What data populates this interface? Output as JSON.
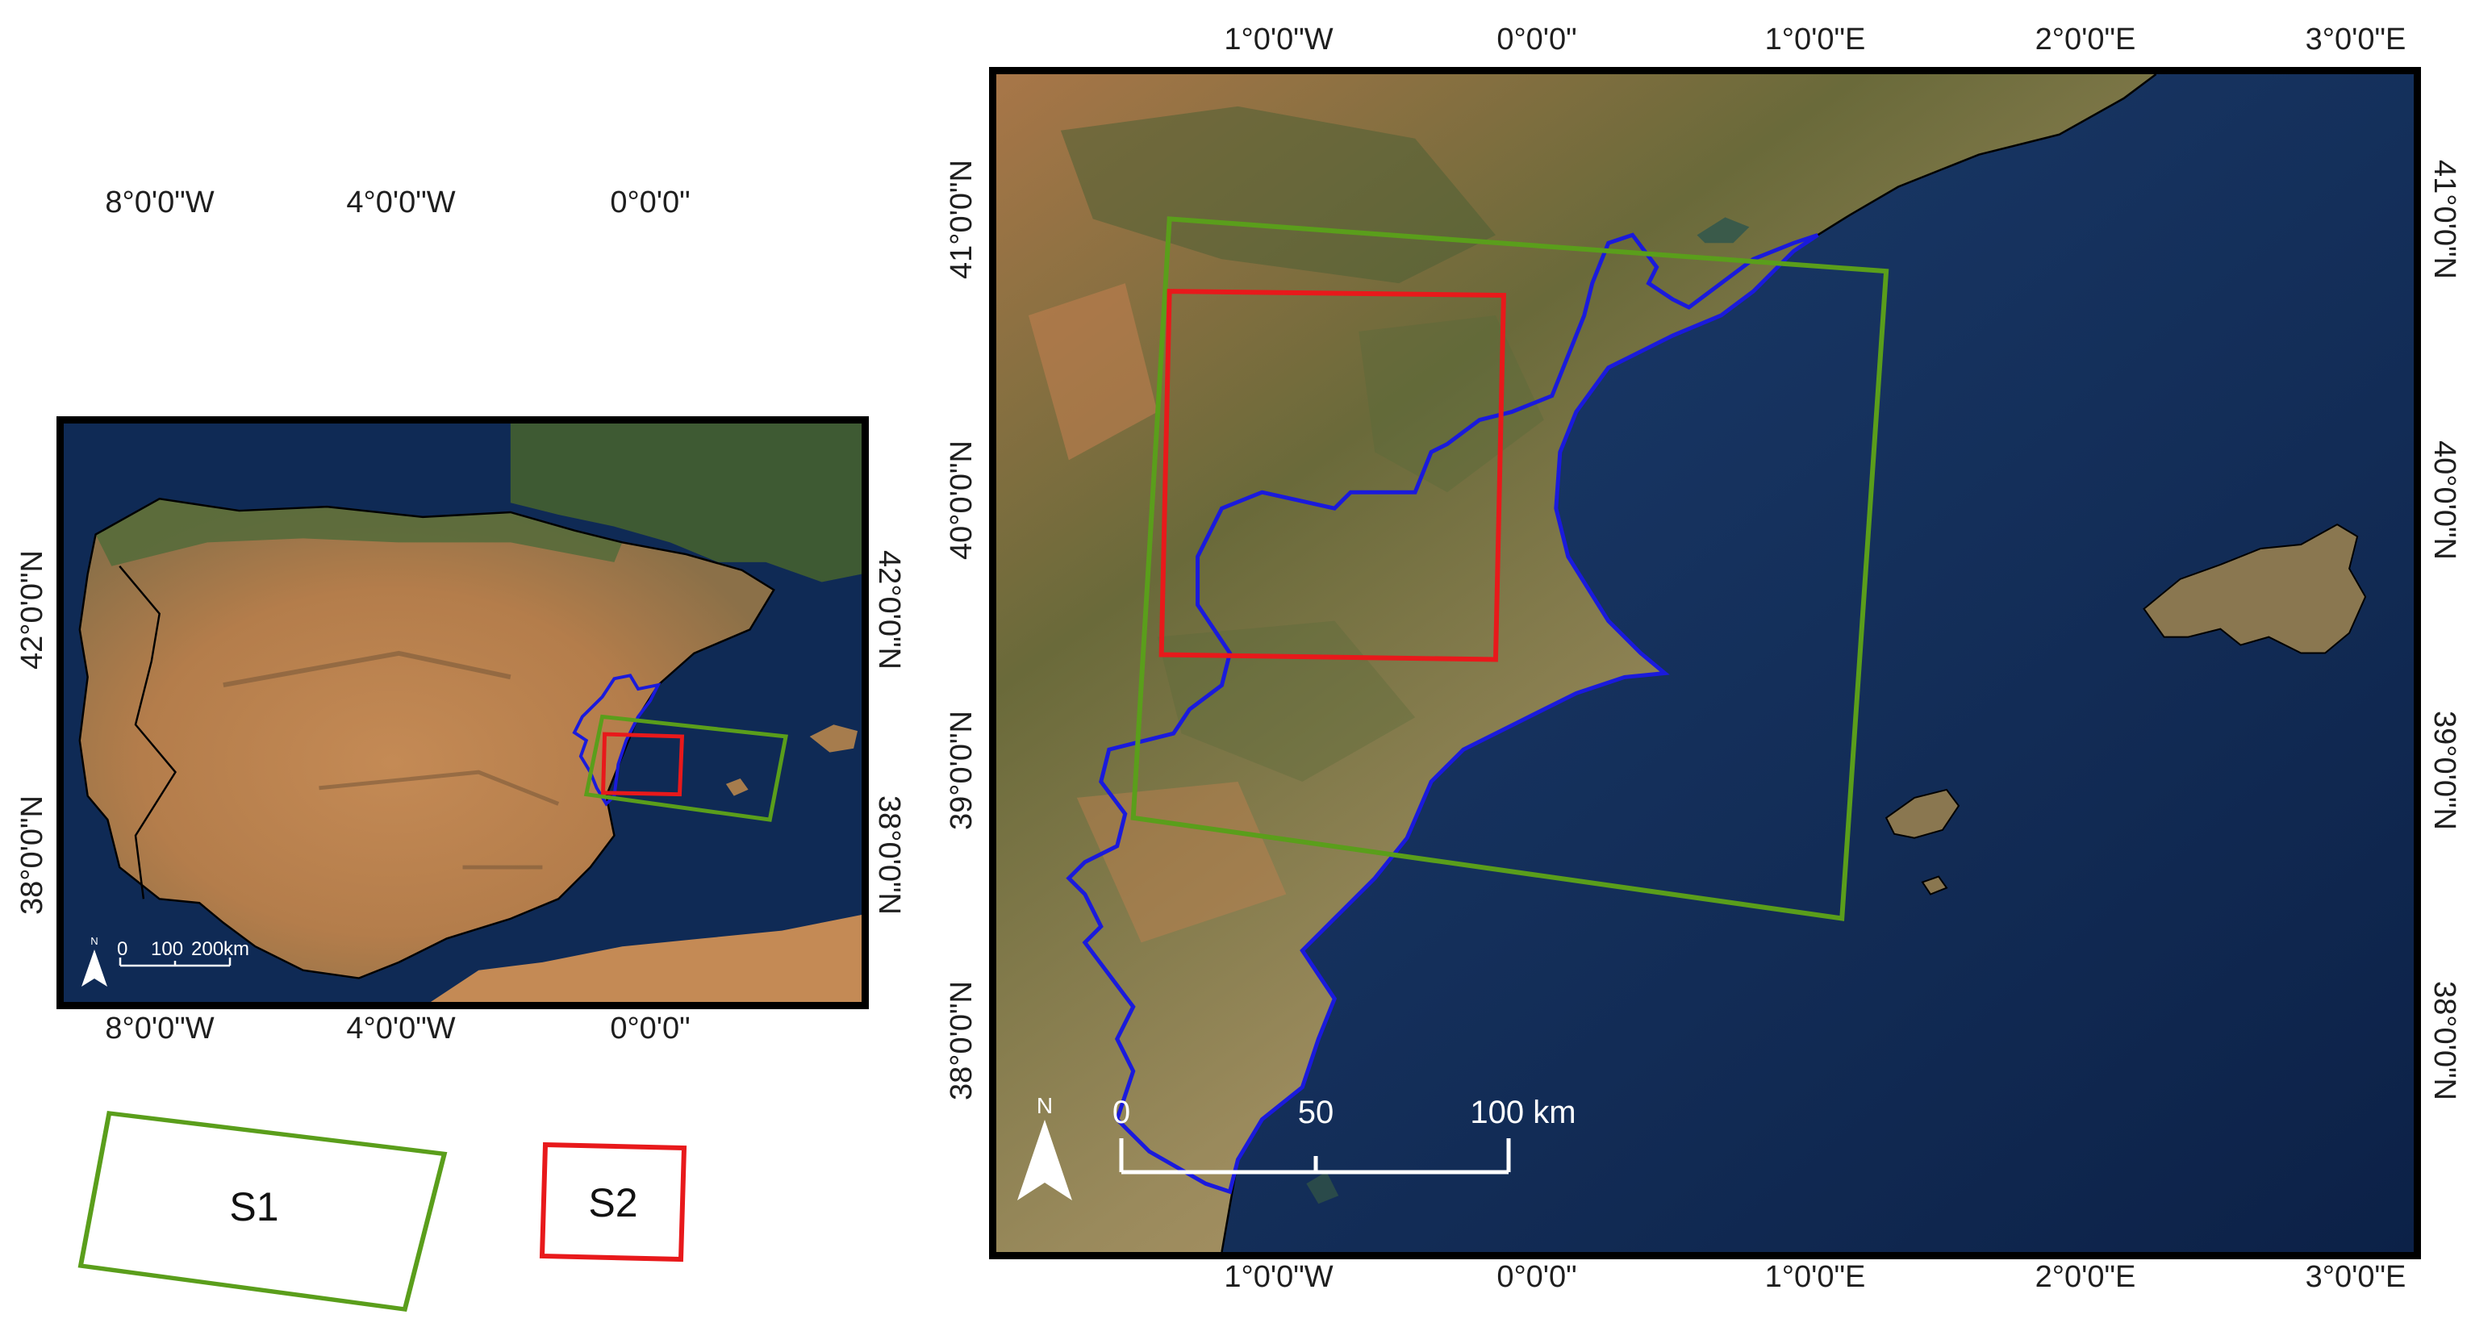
{
  "left_map": {
    "top_lon_labels": [
      "8°0'0\"W",
      "4°0'0\"W",
      "0°0'0\""
    ],
    "bottom_lon_labels": [
      "8°0'0\"W",
      "4°0'0\"W",
      "0°0'0\""
    ],
    "left_lat_labels": [
      "42°0'0\"N",
      "38°0'0\"N"
    ],
    "right_lat_labels": [
      "42°0'0\"N",
      "38°0'0\"N"
    ],
    "scale": {
      "ticks": [
        "0",
        "100",
        "200"
      ],
      "unit": "km",
      "north": "N"
    }
  },
  "right_map": {
    "top_lon_labels": [
      "1°0'0\"W",
      "0°0'0\"",
      "1°0'0\"E",
      "2°0'0\"E",
      "3°0'0\"E"
    ],
    "bottom_lon_labels": [
      "1°0'0\"W",
      "0°0'0\"",
      "1°0'0\"E",
      "2°0'0\"E",
      "3°0'0\"E"
    ],
    "left_lat_labels": [
      "41°0'0\"N",
      "40°0'0\"N",
      "39°0'0\"N",
      "38°0'0\"N"
    ],
    "right_lat_labels": [
      "41°0'0\"N",
      "40°0'0\"N",
      "39°0'0\"N",
      "38°0'0\"N"
    ],
    "scale": {
      "ticks": [
        "0",
        "50",
        "100 km"
      ],
      "north": "N"
    }
  },
  "legend": [
    {
      "label": "S1",
      "color": "#5a9e1b"
    },
    {
      "label": "S2",
      "color": "#e8191b"
    }
  ],
  "colors": {
    "s1_footprint": "#5a9e1b",
    "s2_footprint": "#e8191b",
    "region_boundary": "#1a1adc",
    "sea": "#0f2a55",
    "land": "#b9804e"
  }
}
